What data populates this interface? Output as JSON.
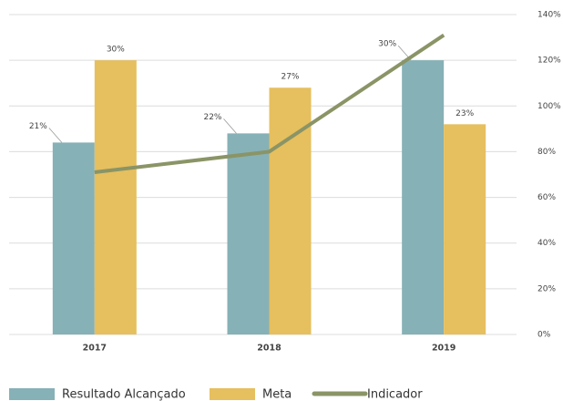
{
  "chart_data": {
    "type": "bar",
    "categories": [
      "2017",
      "2018",
      "2019"
    ],
    "ylim": [
      0,
      35
    ],
    "y2lim": [
      0,
      140
    ],
    "y2ticks": [
      {
        "value": 0,
        "label": "0%"
      },
      {
        "value": 20,
        "label": "20%"
      },
      {
        "value": 40,
        "label": "40%"
      },
      {
        "value": 60,
        "label": "60%"
      },
      {
        "value": 80,
        "label": "80%"
      },
      {
        "value": 100,
        "label": "100%"
      },
      {
        "value": 120,
        "label": "120%"
      },
      {
        "value": 140,
        "label": "140%"
      }
    ],
    "grid": true,
    "legend": "bottom",
    "series": [
      {
        "name": "Resultado Alcançado",
        "type": "bar",
        "color": "#86b1b6",
        "values": [
          21,
          22,
          30
        ],
        "value_labels": [
          "21%",
          "22%",
          "30%"
        ]
      },
      {
        "name": "Meta",
        "type": "bar",
        "color": "#e6bf5e",
        "values": [
          30,
          27,
          23
        ],
        "value_labels": [
          "30%",
          "27%",
          "23%"
        ]
      },
      {
        "name": "Indicador",
        "type": "line",
        "axis": "y2",
        "color": "#8a9466",
        "values": [
          71,
          80,
          131
        ]
      }
    ]
  }
}
